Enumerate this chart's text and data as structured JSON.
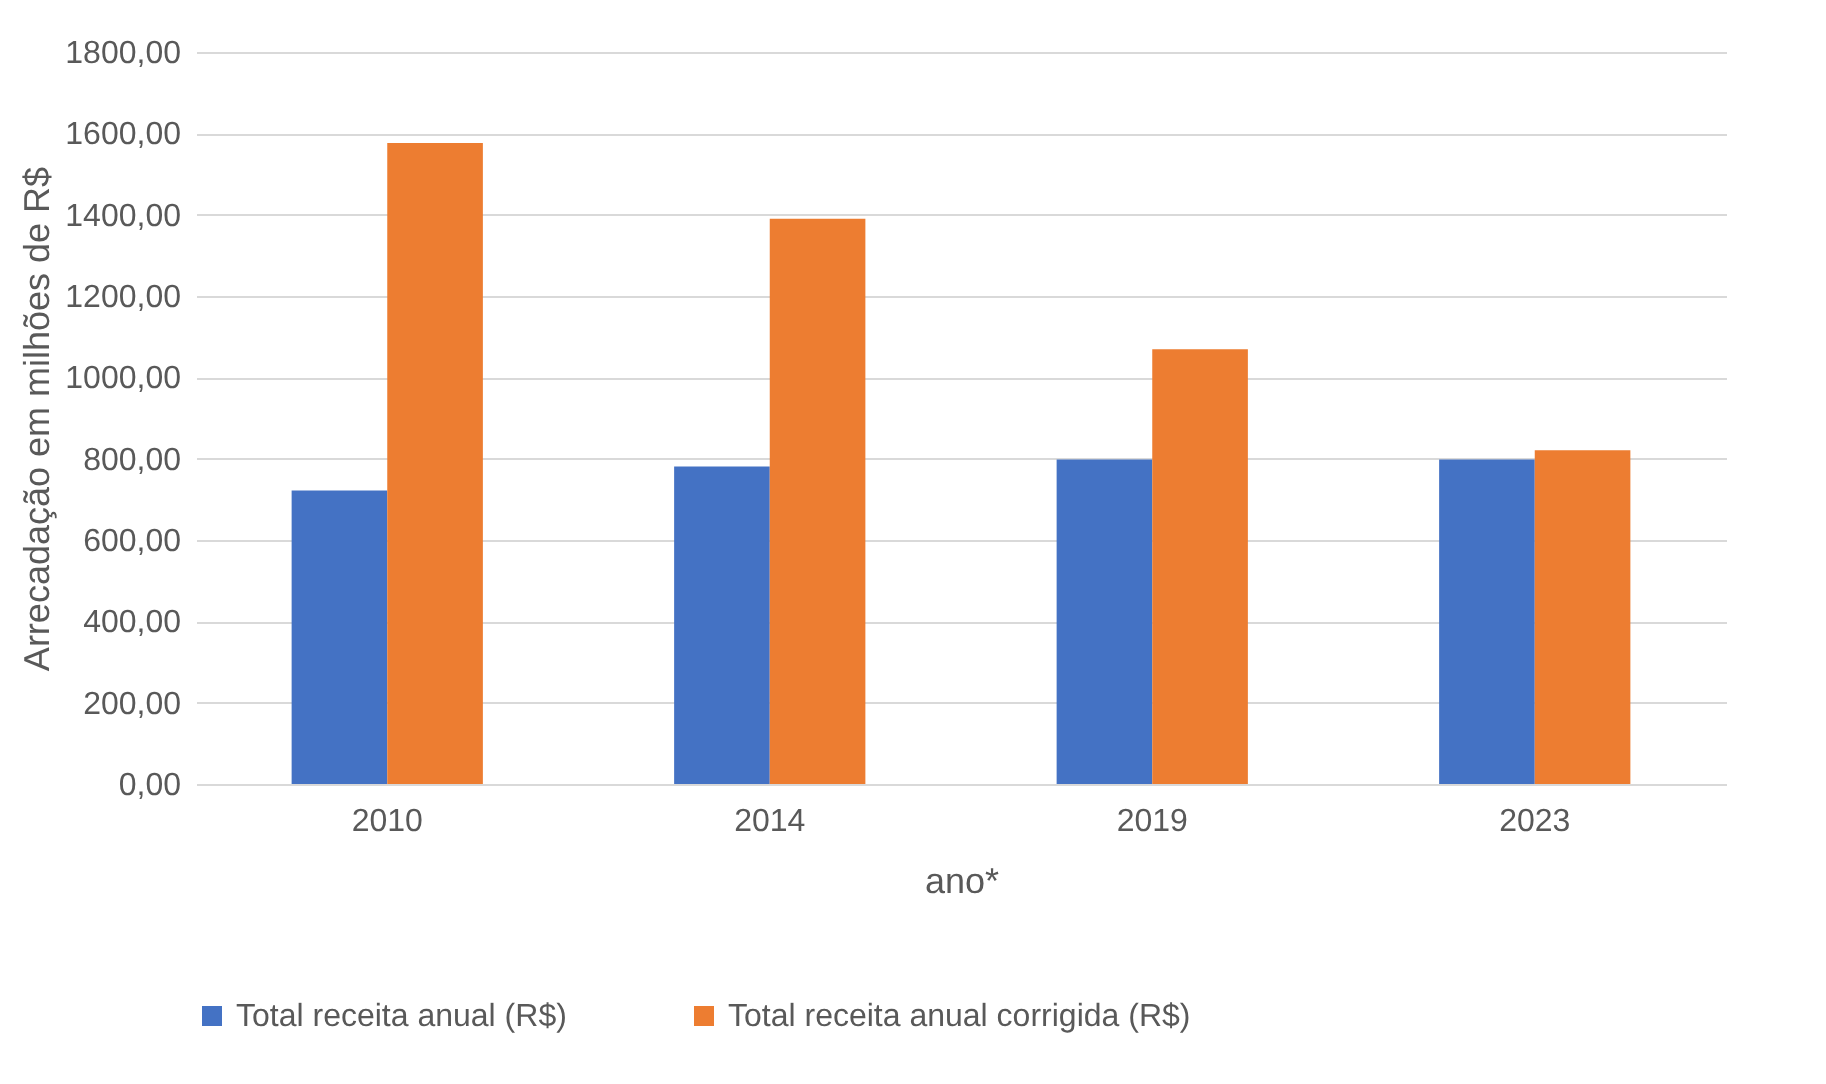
{
  "chart_data": {
    "type": "bar",
    "xlabel": "ano*",
    "ylabel": "Arrecadação em milhões de R$",
    "categories": [
      "2010",
      "2014",
      "2019",
      "2023"
    ],
    "series": [
      {
        "name": "Total receita anual (R$)",
        "color": "#4472c4",
        "values": [
          722,
          781,
          798,
          798
        ]
      },
      {
        "name": "Total receita anual corrigida (R$)",
        "color": "#ed7d31",
        "values": [
          1576,
          1390,
          1069,
          821
        ]
      }
    ],
    "ylim": [
      0,
      1800
    ],
    "yticks": [
      {
        "value": 0,
        "label": "0,00"
      },
      {
        "value": 200,
        "label": "200,00"
      },
      {
        "value": 400,
        "label": "400,00"
      },
      {
        "value": 600,
        "label": "600,00"
      },
      {
        "value": 800,
        "label": "800,00"
      },
      {
        "value": 1000,
        "label": "1000,00"
      },
      {
        "value": 1200,
        "label": "1200,00"
      },
      {
        "value": 1400,
        "label": "1400,00"
      },
      {
        "value": 1600,
        "label": "1600,00"
      },
      {
        "value": 1800,
        "label": "1800,00"
      }
    ],
    "grid": "y",
    "legend": "bottom"
  }
}
